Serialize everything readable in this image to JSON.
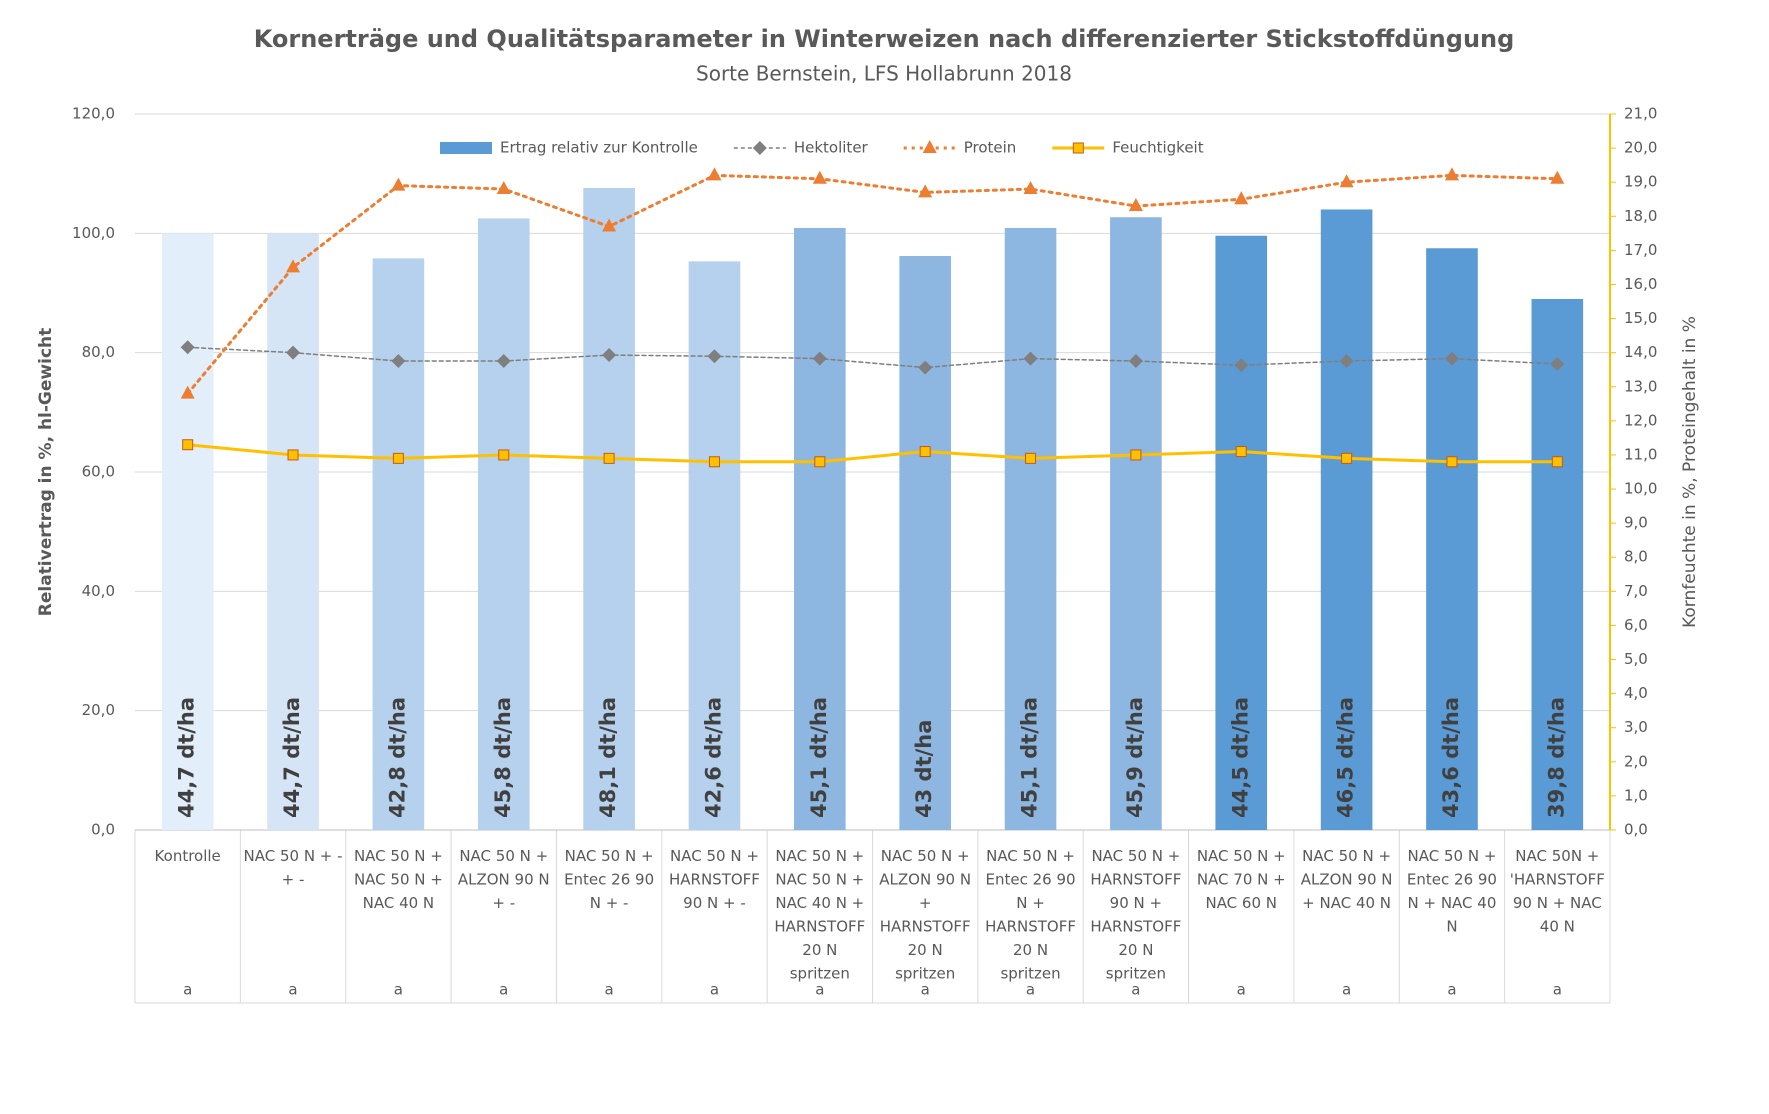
{
  "chart_data": {
    "type": "bar",
    "title": "Kornerträge und Qualitätsparameter in Winterweizen nach differenzierter Stickstoffdüngung",
    "subtitle": "Sorte Bernstein, LFS Hollabrunn 2018",
    "y_label": "Relativertrag in %, hl-Gewicht",
    "y2_label": "Kornfeuchte in %, Proteingehalt in %",
    "legend": "top",
    "grid": true,
    "categories": [
      "Kontrolle",
      "NAC 50 N + - + -",
      "NAC 50 N + NAC 50 N + NAC 40 N",
      "NAC 50 N + ALZON 90 N + -",
      "NAC 50 N + Entec 26 90 N + -",
      "NAC 50 N + HARNSTOFF 90 N + -",
      "NAC 50 N + NAC 50 N + NAC 40 N + HARNSTOFF 20 N spritzen",
      "NAC 50 N + ALZON 90 N + HARNSTOFF 20 N spritzen",
      "NAC 50 N + Entec 26 90 N + HARNSTOFF 20 N spritzen",
      "NAC 50 N + HARNSTOFF 90 N + HARNSTOFF 20 N spritzen",
      "NAC 50 N + NAC 70 N + NAC 60 N",
      "NAC 50 N + ALZON 90 N + NAC 40 N",
      "NAC 50 N + Entec 26 90 N + NAC 40 N",
      "NAC 50N + 'HARNSTOFF 90 N + NAC 40 N"
    ],
    "letters": [
      "a",
      "a",
      "a",
      "a",
      "a",
      "a",
      "a",
      "a",
      "a",
      "a",
      "a",
      "a",
      "a",
      "a"
    ],
    "yield_labels": [
      "44,7 dt/ha",
      "44,7 dt/ha",
      "42,8 dt/ha",
      "45,8 dt/ha",
      "48,1 dt/ha",
      "42,6 dt/ha",
      "45,1 dt/ha",
      "43 dt/ha",
      "45,1 dt/ha",
      "45,9 dt/ha",
      "44,5 dt/ha",
      "46,5 dt/ha",
      "43,6 dt/ha",
      "39,8 dt/ha"
    ],
    "ylim": [
      0,
      120
    ],
    "yticks": [
      {
        "value": 0,
        "label": "0,0"
      },
      {
        "value": 20,
        "label": "20,0"
      },
      {
        "value": 40,
        "label": "40,0"
      },
      {
        "value": 60,
        "label": "60,0"
      },
      {
        "value": 80,
        "label": "80,0"
      },
      {
        "value": 100,
        "label": "100,0"
      },
      {
        "value": 120,
        "label": "120,0"
      }
    ],
    "y2lim": [
      0,
      21
    ],
    "y2ticks": [
      {
        "value": 0,
        "label": "0,0"
      },
      {
        "value": 1,
        "label": "1,0"
      },
      {
        "value": 2,
        "label": "2,0"
      },
      {
        "value": 3,
        "label": "3,0"
      },
      {
        "value": 4,
        "label": "4,0"
      },
      {
        "value": 5,
        "label": "5,0"
      },
      {
        "value": 6,
        "label": "6,0"
      },
      {
        "value": 7,
        "label": "7,0"
      },
      {
        "value": 8,
        "label": "8,0"
      },
      {
        "value": 9,
        "label": "9,0"
      },
      {
        "value": 10,
        "label": "10,0"
      },
      {
        "value": 11,
        "label": "11,0"
      },
      {
        "value": 12,
        "label": "12,0"
      },
      {
        "value": 13,
        "label": "13,0"
      },
      {
        "value": 14,
        "label": "14,0"
      },
      {
        "value": 15,
        "label": "15,0"
      },
      {
        "value": 16,
        "label": "16,0"
      },
      {
        "value": 17,
        "label": "17,0"
      },
      {
        "value": 18,
        "label": "18,0"
      },
      {
        "value": 19,
        "label": "19,0"
      },
      {
        "value": 20,
        "label": "20,0"
      },
      {
        "value": 21,
        "label": "21,0"
      }
    ],
    "series": [
      {
        "name": "Ertrag relativ zur Kontrolle",
        "type": "bar",
        "axis": "y",
        "color": "#5b9bd5",
        "colors": [
          "#e2eef9",
          "#d5e5f5",
          "#b5d1ed",
          "#b5d1ed",
          "#b5d1ed",
          "#b5d1ed",
          "#8db7e0",
          "#8db7e0",
          "#8db7e0",
          "#8db7e0",
          "#5b9bd5",
          "#5b9bd5",
          "#5b9bd5",
          "#5b9bd5"
        ],
        "values": [
          100,
          100,
          95.8,
          102.5,
          107.6,
          95.3,
          100.9,
          96.2,
          100.9,
          102.7,
          99.6,
          104.0,
          97.5,
          89.0
        ]
      },
      {
        "name": "Hektoliter",
        "type": "line",
        "axis": "y",
        "color": "#7f7f7f",
        "marker": "diamond",
        "dash": "4 3",
        "values": [
          80.9,
          80.0,
          78.6,
          78.6,
          79.6,
          79.4,
          79.0,
          77.5,
          79.0,
          78.6,
          77.9,
          78.6,
          79.0,
          78.1
        ]
      },
      {
        "name": "Protein",
        "type": "line",
        "axis": "y2",
        "color": "#ed7d31",
        "marker": "triangle",
        "dash": "3 5",
        "values": [
          12.8,
          16.5,
          18.9,
          18.8,
          17.7,
          19.2,
          19.1,
          18.7,
          18.8,
          18.3,
          18.5,
          19.0,
          19.2,
          19.1
        ]
      },
      {
        "name": "Feuchtigkeit",
        "type": "line",
        "axis": "y2",
        "color": "#ffc000",
        "marker": "square",
        "dash": "",
        "values": [
          11.3,
          11.0,
          10.9,
          11.0,
          10.9,
          10.8,
          10.8,
          11.1,
          10.9,
          11.0,
          11.1,
          10.9,
          10.8,
          10.8
        ]
      }
    ]
  }
}
